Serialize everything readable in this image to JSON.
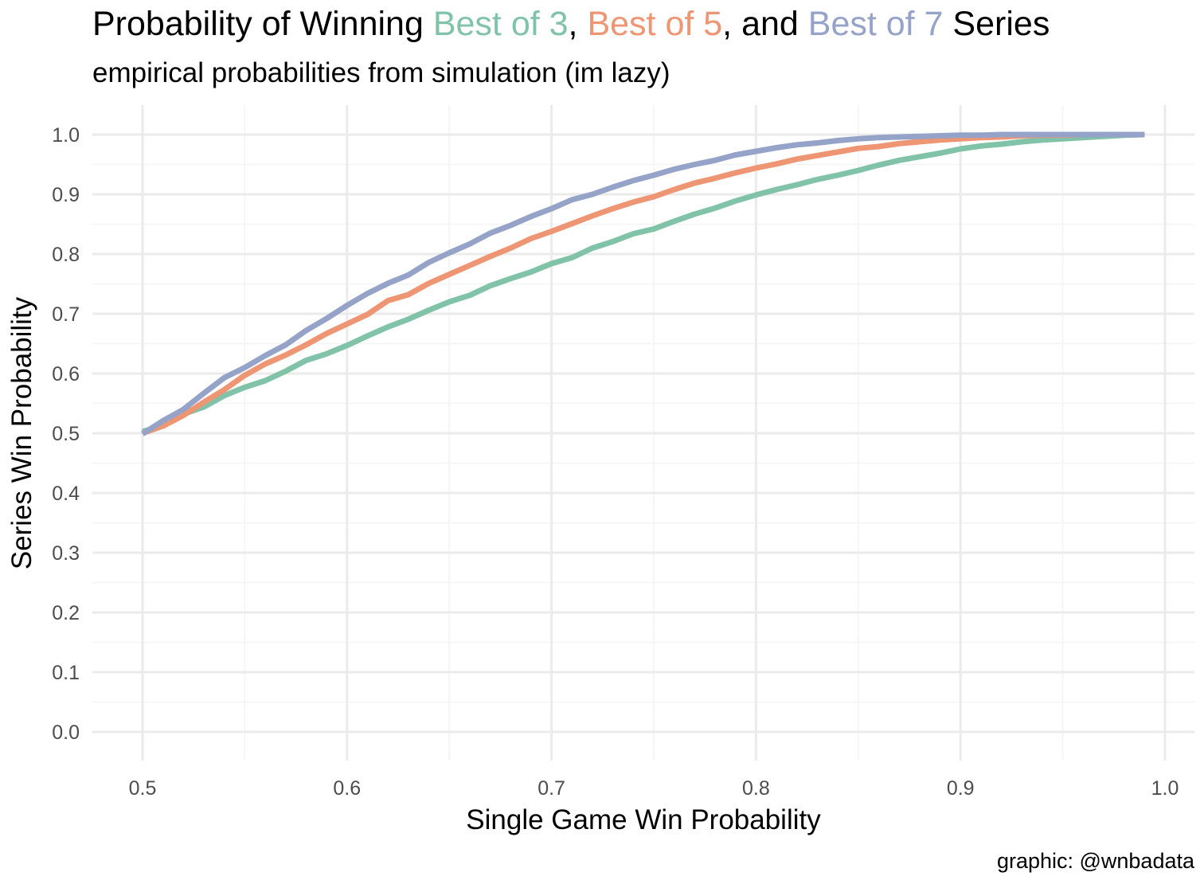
{
  "title": {
    "prefix": "Probability of Winning ",
    "part1": "Best of 3",
    "sep1": ", ",
    "part2": "Best of 5",
    "sep2": ", and ",
    "part3": "Best of 7",
    "suffix": " Series"
  },
  "subtitle": "empirical probabilities from simulation (im lazy)",
  "caption": "graphic: @wnbadata",
  "colors": {
    "best_of_3": "#80C3A9",
    "best_of_5": "#EE9573",
    "best_of_7": "#96A3C9",
    "grid_major": "#ebebeb",
    "grid_minor": "#f4f4f4"
  },
  "chart_data": {
    "type": "line",
    "xlabel": "Single Game Win Probability",
    "ylabel": "Series Win Probability",
    "xlim": [
      0.5,
      1.0
    ],
    "ylim": [
      0.0,
      1.0
    ],
    "x_ticks": [
      "0.5",
      "0.6",
      "0.7",
      "0.8",
      "0.9",
      "1.0"
    ],
    "y_ticks": [
      "0.0",
      "0.1",
      "0.2",
      "0.3",
      "0.4",
      "0.5",
      "0.6",
      "0.7",
      "0.8",
      "0.9",
      "1.0"
    ],
    "grid": true,
    "legend": "none",
    "series": [
      {
        "color_key": "best_of_3",
        "x": [
          0.5,
          0.51,
          0.52,
          0.53,
          0.54,
          0.55,
          0.56,
          0.57,
          0.58,
          0.59,
          0.6,
          0.61,
          0.62,
          0.63,
          0.64,
          0.65,
          0.66,
          0.67,
          0.68,
          0.69,
          0.7,
          0.71,
          0.72,
          0.73,
          0.74,
          0.75,
          0.76,
          0.77,
          0.78,
          0.79,
          0.8,
          0.81,
          0.82,
          0.83,
          0.84,
          0.85,
          0.86,
          0.87,
          0.88,
          0.89,
          0.9,
          0.91,
          0.92,
          0.93,
          0.94,
          0.95,
          0.96,
          0.97,
          0.98,
          0.99
        ],
        "y": [
          0.503,
          0.513,
          0.532,
          0.544,
          0.563,
          0.577,
          0.588,
          0.604,
          0.622,
          0.633,
          0.647,
          0.663,
          0.678,
          0.691,
          0.706,
          0.72,
          0.731,
          0.747,
          0.759,
          0.77,
          0.784,
          0.794,
          0.81,
          0.821,
          0.834,
          0.842,
          0.855,
          0.867,
          0.877,
          0.889,
          0.899,
          0.908,
          0.916,
          0.925,
          0.932,
          0.94,
          0.949,
          0.957,
          0.963,
          0.969,
          0.976,
          0.981,
          0.984,
          0.988,
          0.991,
          0.993,
          0.995,
          0.997,
          0.999,
          1.0
        ]
      },
      {
        "color_key": "best_of_5",
        "x": [
          0.5,
          0.51,
          0.52,
          0.53,
          0.54,
          0.55,
          0.56,
          0.57,
          0.58,
          0.59,
          0.6,
          0.61,
          0.62,
          0.63,
          0.64,
          0.65,
          0.66,
          0.67,
          0.68,
          0.69,
          0.7,
          0.71,
          0.72,
          0.73,
          0.74,
          0.75,
          0.76,
          0.77,
          0.78,
          0.79,
          0.8,
          0.81,
          0.82,
          0.83,
          0.84,
          0.85,
          0.86,
          0.87,
          0.88,
          0.89,
          0.9,
          0.91,
          0.92,
          0.93,
          0.94,
          0.95,
          0.96,
          0.97,
          0.98,
          0.99
        ],
        "y": [
          0.5,
          0.512,
          0.53,
          0.552,
          0.573,
          0.597,
          0.616,
          0.631,
          0.648,
          0.667,
          0.683,
          0.699,
          0.722,
          0.732,
          0.751,
          0.766,
          0.781,
          0.796,
          0.81,
          0.826,
          0.838,
          0.851,
          0.864,
          0.876,
          0.887,
          0.896,
          0.908,
          0.919,
          0.927,
          0.936,
          0.944,
          0.951,
          0.959,
          0.965,
          0.971,
          0.977,
          0.98,
          0.985,
          0.988,
          0.991,
          0.993,
          0.995,
          0.996,
          0.998,
          0.999,
          0.999,
          1.0,
          1.0,
          1.0,
          1.0
        ]
      },
      {
        "color_key": "best_of_7",
        "x": [
          0.5,
          0.51,
          0.52,
          0.53,
          0.54,
          0.55,
          0.56,
          0.57,
          0.58,
          0.59,
          0.6,
          0.61,
          0.62,
          0.63,
          0.64,
          0.65,
          0.66,
          0.67,
          0.68,
          0.69,
          0.7,
          0.71,
          0.72,
          0.73,
          0.74,
          0.75,
          0.76,
          0.77,
          0.78,
          0.79,
          0.8,
          0.81,
          0.82,
          0.83,
          0.84,
          0.85,
          0.86,
          0.87,
          0.88,
          0.89,
          0.9,
          0.91,
          0.92,
          0.93,
          0.94,
          0.95,
          0.96,
          0.97,
          0.98,
          0.99
        ],
        "y": [
          0.499,
          0.521,
          0.54,
          0.567,
          0.593,
          0.61,
          0.63,
          0.648,
          0.672,
          0.692,
          0.714,
          0.734,
          0.751,
          0.765,
          0.786,
          0.802,
          0.817,
          0.835,
          0.848,
          0.863,
          0.876,
          0.891,
          0.9,
          0.912,
          0.923,
          0.932,
          0.942,
          0.95,
          0.957,
          0.966,
          0.972,
          0.978,
          0.983,
          0.986,
          0.99,
          0.993,
          0.995,
          0.996,
          0.997,
          0.998,
          0.999,
          0.999,
          1.0,
          1.0,
          1.0,
          1.0,
          1.0,
          1.0,
          1.0,
          1.0
        ]
      }
    ]
  }
}
